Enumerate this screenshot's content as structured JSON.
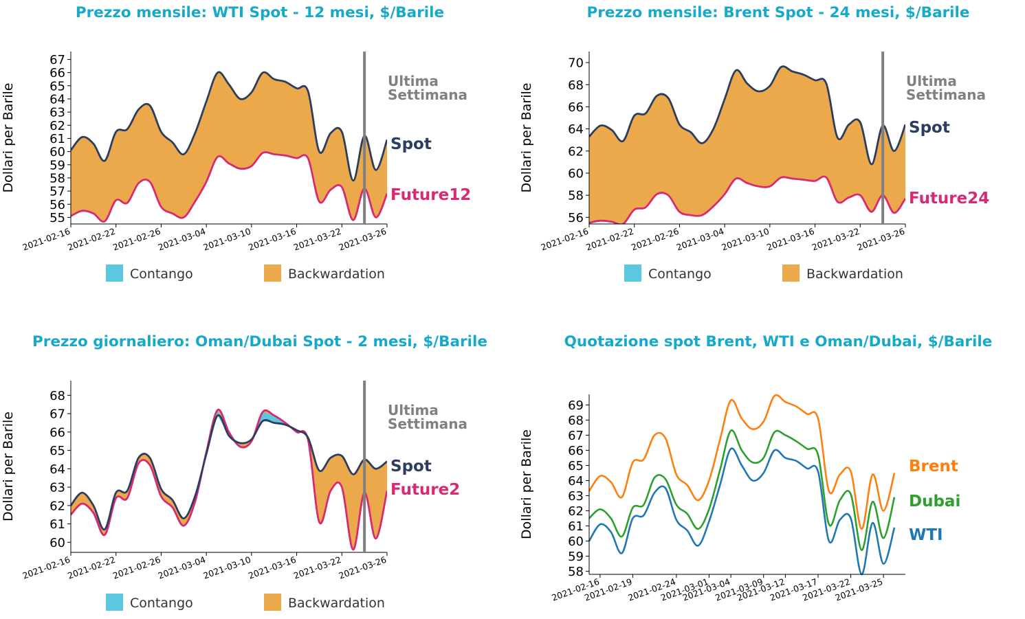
{
  "colors": {
    "title": "#17a9c9",
    "spot": "#2c3e5f",
    "future": "#d62a74",
    "contango": "#5bc8df",
    "backwardation": "#eba94b",
    "week_line": "#808080",
    "brent": "#ff7f0e",
    "dubai": "#2ca02c",
    "wti": "#1f77b4"
  },
  "chart_data": [
    {
      "type": "area",
      "title": "Prezzo mensile: WTI Spot - 12 mesi, $/Barile",
      "ylabel": "Dollari per Barile",
      "ylim": [
        54.5,
        67.6
      ],
      "yticks": [
        55,
        56,
        57,
        58,
        59,
        60,
        61,
        62,
        63,
        64,
        65,
        66,
        67
      ],
      "xticks": [
        "2021-02-16",
        "2021-02-22",
        "2021-02-26",
        "2021-03-04",
        "2021-03-10",
        "2021-03-16",
        "2021-03-22",
        "2021-03-26"
      ],
      "last_week_label": "Ultima Settimana",
      "spot_label": "Spot",
      "future_label": "Future12",
      "legend": [
        "Contango",
        "Backwardation"
      ],
      "last_week_index": 26,
      "series": [
        {
          "name": "Spot",
          "values": [
            60.1,
            61.1,
            60.6,
            59.3,
            61.5,
            61.7,
            63.2,
            63.5,
            61.5,
            60.7,
            59.8,
            61.4,
            63.8,
            66.0,
            65.1,
            64.0,
            64.5,
            66.0,
            65.5,
            65.3,
            64.8,
            64.6,
            60.0,
            61.4,
            61.5,
            57.8,
            61.2,
            58.6,
            60.9
          ]
        },
        {
          "name": "Future12",
          "values": [
            55.1,
            55.5,
            55.3,
            54.7,
            56.3,
            56.1,
            57.6,
            57.7,
            55.8,
            55.3,
            55.0,
            56.2,
            57.7,
            59.6,
            59.1,
            58.7,
            58.9,
            59.9,
            59.8,
            59.7,
            59.5,
            59.5,
            56.2,
            57.1,
            57.3,
            54.8,
            57.2,
            55.0,
            56.8
          ]
        }
      ]
    },
    {
      "type": "area",
      "title": "Prezzo mensile: Brent Spot - 24 mesi, $/Barile",
      "ylabel": "Dollari per Barile",
      "ylim": [
        55.4,
        71.0
      ],
      "yticks": [
        56,
        58,
        60,
        62,
        64,
        66,
        68,
        70
      ],
      "xticks": [
        "2021-02-16",
        "2021-02-22",
        "2021-02-26",
        "2021-03-04",
        "2021-03-10",
        "2021-03-16",
        "2021-03-22",
        "2021-03-26"
      ],
      "last_week_label": "Ultima Settimana",
      "spot_label": "Spot",
      "future_label": "Future24",
      "legend": [
        "Contango",
        "Backwardation"
      ],
      "last_week_index": 26,
      "series": [
        {
          "name": "Spot",
          "values": [
            63.3,
            64.3,
            63.9,
            62.9,
            65.2,
            65.4,
            67.0,
            66.8,
            64.4,
            63.7,
            62.7,
            64.0,
            66.7,
            69.3,
            68.1,
            67.4,
            67.9,
            69.6,
            69.2,
            68.9,
            68.4,
            68.1,
            63.2,
            64.4,
            64.6,
            60.8,
            64.3,
            62.0,
            64.4
          ]
        },
        {
          "name": "Future24",
          "values": [
            55.5,
            55.7,
            55.6,
            55.4,
            56.7,
            56.9,
            58.1,
            58.0,
            56.5,
            56.2,
            56.2,
            57.0,
            58.1,
            59.5,
            59.1,
            58.8,
            58.8,
            59.6,
            59.5,
            59.4,
            59.3,
            59.6,
            57.4,
            57.8,
            58.0,
            56.5,
            58.0,
            56.4,
            57.7
          ]
        }
      ]
    },
    {
      "type": "area",
      "title": "Prezzo giornaliero: Oman/Dubai Spot - 2 mesi, $/Barile",
      "ylabel": "Dollari per Barile",
      "ylim": [
        59.45,
        68.8
      ],
      "yticks": [
        60,
        61,
        62,
        63,
        64,
        65,
        66,
        67,
        68
      ],
      "xticks": [
        "2021-02-16",
        "2021-02-22",
        "2021-02-26",
        "2021-03-04",
        "2021-03-10",
        "2021-03-16",
        "2021-03-22",
        "2021-03-26"
      ],
      "last_week_label": "Ultima Settimana",
      "spot_label": "Spot",
      "future_label": "Future2",
      "legend": [
        "Contango",
        "Backwardation"
      ],
      "last_week_index": 26,
      "series": [
        {
          "name": "Spot",
          "values": [
            62.0,
            62.7,
            62.0,
            60.7,
            62.7,
            62.8,
            64.6,
            64.6,
            62.9,
            62.3,
            61.3,
            62.5,
            64.8,
            66.9,
            65.8,
            65.4,
            65.6,
            66.6,
            66.5,
            66.4,
            66.1,
            65.7,
            63.9,
            64.6,
            64.7,
            63.7,
            64.5,
            64.0,
            64.4
          ]
        },
        {
          "name": "Future2",
          "values": [
            61.5,
            62.1,
            61.6,
            60.4,
            62.4,
            62.4,
            64.3,
            64.2,
            62.5,
            61.9,
            60.9,
            62.2,
            64.9,
            67.2,
            66.0,
            65.2,
            65.5,
            67.1,
            66.9,
            66.5,
            66.0,
            65.6,
            61.1,
            62.8,
            63.0,
            59.6,
            62.7,
            60.2,
            62.8
          ]
        }
      ]
    },
    {
      "type": "line",
      "title": "Quotazione spot Brent, WTI e Oman/Dubai, $/Barile",
      "ylabel": "Dollari per Barile",
      "ylim": [
        57.8,
        69.7
      ],
      "yticks": [
        58,
        59,
        60,
        61,
        62,
        63,
        64,
        65,
        66,
        67,
        68,
        69
      ],
      "xticks": [
        "2021-02-16",
        "2021-02-19",
        "2021-02-24",
        "2021-03-01",
        "2021-03-04",
        "2021-03-09",
        "2021-03-12",
        "2021-03-17",
        "2021-03-22",
        "2021-03-25"
      ],
      "series": [
        {
          "name": "Brent",
          "values": [
            63.3,
            64.3,
            63.9,
            62.9,
            65.2,
            65.4,
            67.0,
            66.8,
            64.4,
            63.7,
            62.7,
            64.0,
            66.7,
            69.3,
            68.1,
            67.4,
            67.9,
            69.6,
            69.2,
            68.9,
            68.4,
            68.1,
            63.3,
            64.4,
            64.6,
            60.8,
            64.4,
            62.0,
            64.5
          ]
        },
        {
          "name": "Dubai",
          "values": [
            61.5,
            62.1,
            61.5,
            60.3,
            62.2,
            62.4,
            64.2,
            64.1,
            62.4,
            61.8,
            60.8,
            62.1,
            64.7,
            67.3,
            66.0,
            65.2,
            65.5,
            67.2,
            67.0,
            66.6,
            66.1,
            65.7,
            61.1,
            62.7,
            63.1,
            59.4,
            62.6,
            60.2,
            62.9
          ]
        },
        {
          "name": "WTI",
          "values": [
            60.0,
            61.1,
            60.6,
            59.2,
            61.5,
            61.7,
            63.2,
            63.5,
            61.4,
            60.7,
            59.7,
            61.3,
            63.7,
            66.1,
            65.0,
            64.0,
            64.5,
            66.0,
            65.5,
            65.3,
            64.8,
            64.6,
            60.0,
            61.4,
            61.5,
            57.8,
            61.2,
            58.5,
            60.9
          ]
        }
      ]
    }
  ]
}
